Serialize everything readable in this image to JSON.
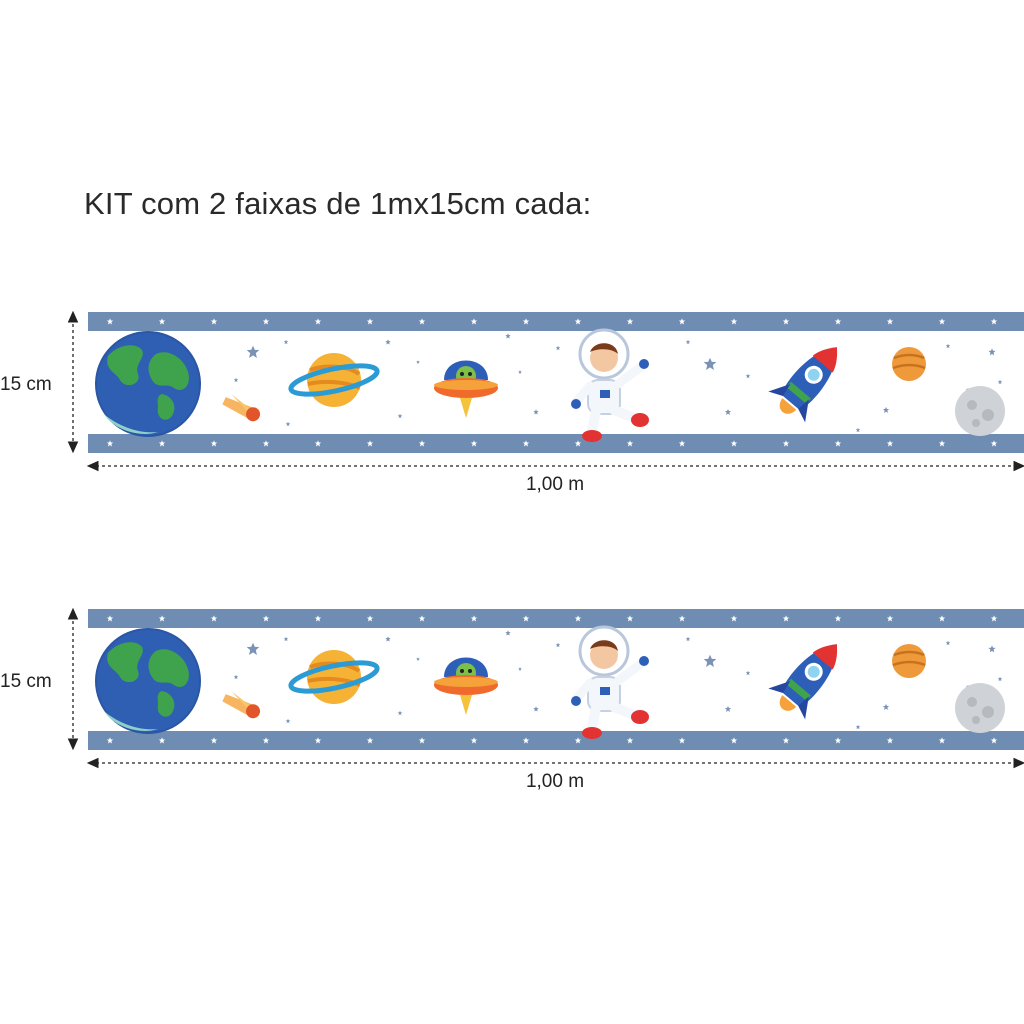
{
  "title": "KIT com 2 faixas de 1mx15cm cada:",
  "colors": {
    "band": "#6f8db3",
    "band_star": "#ffffff",
    "field_star": "#7a92b5",
    "dimension_line": "#222222"
  },
  "strips": [
    {
      "height_label": "15 cm",
      "width_label": "1,00 m",
      "motifs": [
        "earth-icon",
        "comet-icon",
        "saturn-icon",
        "ufo-alien-icon",
        "astronaut-icon",
        "rocket-icon",
        "orange-planet-icon",
        "moon-icon"
      ]
    },
    {
      "height_label": "15 cm",
      "width_label": "1,00 m",
      "motifs": [
        "earth-icon",
        "comet-icon",
        "saturn-icon",
        "ufo-alien-icon",
        "astronaut-icon",
        "rocket-icon",
        "orange-planet-icon",
        "moon-icon"
      ]
    }
  ]
}
